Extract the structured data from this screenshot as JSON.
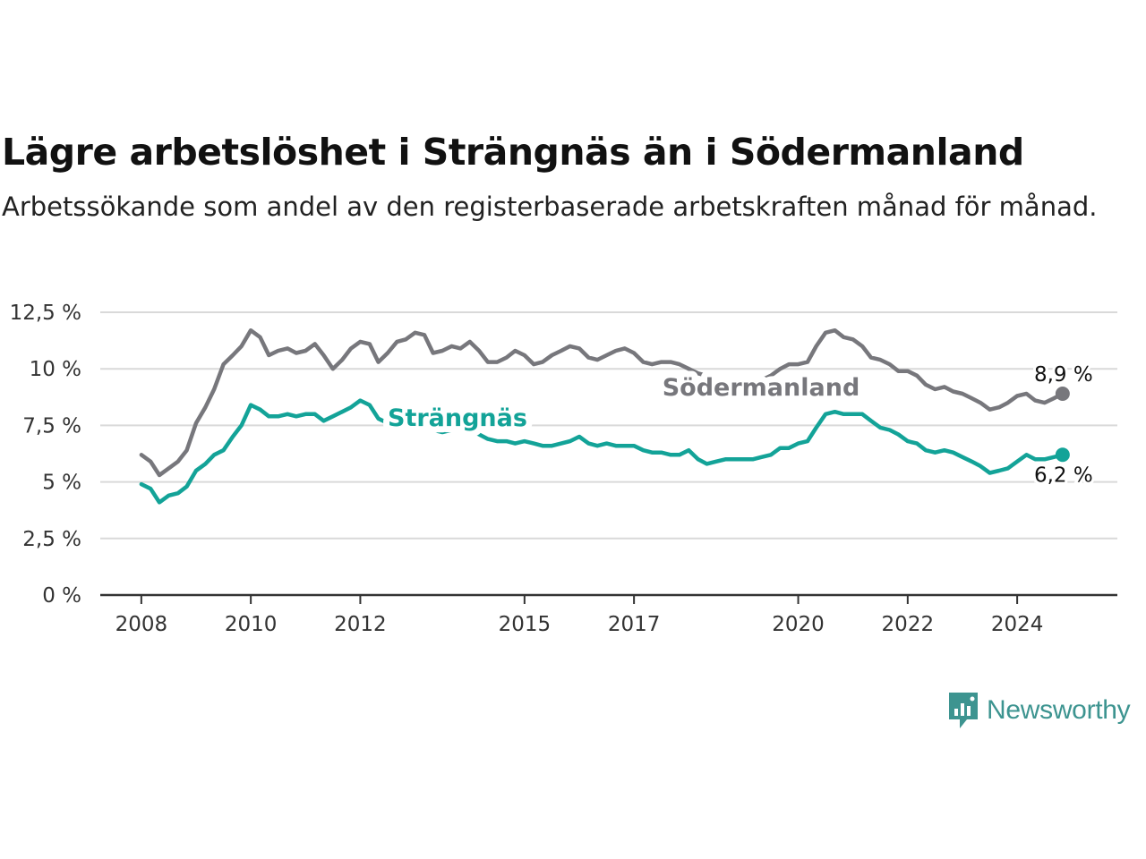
{
  "title": "Lägre arbetslöshet i Strängnäs än i Södermanland",
  "subtitle": "Arbetssökande som andel av den registerbaserade arbetskraften månad för månad.",
  "brand": {
    "name": "Newsworthy",
    "icon": "newsworthy-logo-icon",
    "color": "#3d9490"
  },
  "chart_data": {
    "type": "line",
    "title": "Lägre arbetslöshet i Strängnäs än i Södermanland",
    "subtitle": "Arbetssökande som andel av den registerbaserade arbetskraften månad för månad.",
    "xlabel": "",
    "ylabel": "",
    "xlim": [
      2007.25,
      2025.83
    ],
    "ylim": [
      0,
      12.5
    ],
    "x_ticks": [
      2008,
      2010,
      2012,
      2015,
      2017,
      2020,
      2022,
      2024
    ],
    "y_ticks": [
      0,
      2.5,
      5,
      7.5,
      10,
      12.5
    ],
    "y_tick_labels": [
      "0 %",
      "2,5 %",
      "5 %",
      "7,5 %",
      "10 %",
      "12,5 %"
    ],
    "grid": "horizontal",
    "legend": "inline labels",
    "series": [
      {
        "name": "Södermanland",
        "color": "#77777c",
        "end_label": "8,9 %",
        "points": [
          [
            2008.0,
            6.2
          ],
          [
            2008.17,
            5.9
          ],
          [
            2008.33,
            5.3
          ],
          [
            2008.5,
            5.6
          ],
          [
            2008.67,
            5.9
          ],
          [
            2008.83,
            6.4
          ],
          [
            2009.0,
            7.6
          ],
          [
            2009.17,
            8.3
          ],
          [
            2009.33,
            9.1
          ],
          [
            2009.5,
            10.2
          ],
          [
            2009.67,
            10.6
          ],
          [
            2009.83,
            11.0
          ],
          [
            2010.0,
            11.7
          ],
          [
            2010.17,
            11.4
          ],
          [
            2010.33,
            10.6
          ],
          [
            2010.5,
            10.8
          ],
          [
            2010.67,
            10.9
          ],
          [
            2010.83,
            10.7
          ],
          [
            2011.0,
            10.8
          ],
          [
            2011.17,
            11.1
          ],
          [
            2011.33,
            10.6
          ],
          [
            2011.5,
            10.0
          ],
          [
            2011.67,
            10.4
          ],
          [
            2011.83,
            10.9
          ],
          [
            2012.0,
            11.2
          ],
          [
            2012.17,
            11.1
          ],
          [
            2012.33,
            10.3
          ],
          [
            2012.5,
            10.7
          ],
          [
            2012.67,
            11.2
          ],
          [
            2012.83,
            11.3
          ],
          [
            2013.0,
            11.6
          ],
          [
            2013.17,
            11.5
          ],
          [
            2013.33,
            10.7
          ],
          [
            2013.5,
            10.8
          ],
          [
            2013.67,
            11.0
          ],
          [
            2013.83,
            10.9
          ],
          [
            2014.0,
            11.2
          ],
          [
            2014.17,
            10.8
          ],
          [
            2014.33,
            10.3
          ],
          [
            2014.5,
            10.3
          ],
          [
            2014.67,
            10.5
          ],
          [
            2014.83,
            10.8
          ],
          [
            2015.0,
            10.6
          ],
          [
            2015.17,
            10.2
          ],
          [
            2015.33,
            10.3
          ],
          [
            2015.5,
            10.6
          ],
          [
            2015.67,
            10.8
          ],
          [
            2015.83,
            11.0
          ],
          [
            2016.0,
            10.9
          ],
          [
            2016.17,
            10.5
          ],
          [
            2016.33,
            10.4
          ],
          [
            2016.5,
            10.6
          ],
          [
            2016.67,
            10.8
          ],
          [
            2016.83,
            10.9
          ],
          [
            2017.0,
            10.7
          ],
          [
            2017.17,
            10.3
          ],
          [
            2017.33,
            10.2
          ],
          [
            2017.5,
            10.3
          ],
          [
            2017.67,
            10.3
          ],
          [
            2017.83,
            10.2
          ],
          [
            2018.0,
            10.0
          ],
          [
            2018.17,
            9.8
          ],
          [
            2018.33,
            9.7
          ],
          [
            2018.5,
            9.5
          ],
          [
            2018.67,
            9.4
          ],
          [
            2018.83,
            9.3
          ],
          [
            2019.0,
            9.3
          ],
          [
            2019.17,
            9.4
          ],
          [
            2019.33,
            9.5
          ],
          [
            2019.5,
            9.7
          ],
          [
            2019.67,
            10.0
          ],
          [
            2019.83,
            10.2
          ],
          [
            2020.0,
            10.2
          ],
          [
            2020.17,
            10.3
          ],
          [
            2020.33,
            11.0
          ],
          [
            2020.5,
            11.6
          ],
          [
            2020.67,
            11.7
          ],
          [
            2020.83,
            11.4
          ],
          [
            2021.0,
            11.3
          ],
          [
            2021.17,
            11.0
          ],
          [
            2021.33,
            10.5
          ],
          [
            2021.5,
            10.4
          ],
          [
            2021.67,
            10.2
          ],
          [
            2021.83,
            9.9
          ],
          [
            2022.0,
            9.9
          ],
          [
            2022.17,
            9.7
          ],
          [
            2022.33,
            9.3
          ],
          [
            2022.5,
            9.1
          ],
          [
            2022.67,
            9.2
          ],
          [
            2022.83,
            9.0
          ],
          [
            2023.0,
            8.9
          ],
          [
            2023.17,
            8.7
          ],
          [
            2023.33,
            8.5
          ],
          [
            2023.5,
            8.2
          ],
          [
            2023.67,
            8.3
          ],
          [
            2023.83,
            8.5
          ],
          [
            2024.0,
            8.8
          ],
          [
            2024.17,
            8.9
          ],
          [
            2024.33,
            8.6
          ],
          [
            2024.5,
            8.5
          ],
          [
            2024.67,
            8.7
          ],
          [
            2024.83,
            8.9
          ]
        ]
      },
      {
        "name": "Strängnäs",
        "color": "#13a398",
        "end_label": "6,2 %",
        "points": [
          [
            2008.0,
            4.9
          ],
          [
            2008.17,
            4.7
          ],
          [
            2008.33,
            4.1
          ],
          [
            2008.5,
            4.4
          ],
          [
            2008.67,
            4.5
          ],
          [
            2008.83,
            4.8
          ],
          [
            2009.0,
            5.5
          ],
          [
            2009.17,
            5.8
          ],
          [
            2009.33,
            6.2
          ],
          [
            2009.5,
            6.4
          ],
          [
            2009.67,
            7.0
          ],
          [
            2009.83,
            7.5
          ],
          [
            2010.0,
            8.4
          ],
          [
            2010.17,
            8.2
          ],
          [
            2010.33,
            7.9
          ],
          [
            2010.5,
            7.9
          ],
          [
            2010.67,
            8.0
          ],
          [
            2010.83,
            7.9
          ],
          [
            2011.0,
            8.0
          ],
          [
            2011.17,
            8.0
          ],
          [
            2011.33,
            7.7
          ],
          [
            2011.5,
            7.9
          ],
          [
            2011.67,
            8.1
          ],
          [
            2011.83,
            8.3
          ],
          [
            2012.0,
            8.6
          ],
          [
            2012.17,
            8.4
          ],
          [
            2012.33,
            7.8
          ],
          [
            2012.5,
            7.6
          ],
          [
            2012.67,
            7.7
          ],
          [
            2012.83,
            7.8
          ],
          [
            2013.0,
            7.9
          ],
          [
            2013.17,
            7.6
          ],
          [
            2013.33,
            7.3
          ],
          [
            2013.5,
            7.2
          ],
          [
            2013.67,
            7.3
          ],
          [
            2013.83,
            7.4
          ],
          [
            2014.0,
            7.3
          ],
          [
            2014.17,
            7.1
          ],
          [
            2014.33,
            6.9
          ],
          [
            2014.5,
            6.8
          ],
          [
            2014.67,
            6.8
          ],
          [
            2014.83,
            6.7
          ],
          [
            2015.0,
            6.8
          ],
          [
            2015.17,
            6.7
          ],
          [
            2015.33,
            6.6
          ],
          [
            2015.5,
            6.6
          ],
          [
            2015.67,
            6.7
          ],
          [
            2015.83,
            6.8
          ],
          [
            2016.0,
            7.0
          ],
          [
            2016.17,
            6.7
          ],
          [
            2016.33,
            6.6
          ],
          [
            2016.5,
            6.7
          ],
          [
            2016.67,
            6.6
          ],
          [
            2016.83,
            6.6
          ],
          [
            2017.0,
            6.6
          ],
          [
            2017.17,
            6.4
          ],
          [
            2017.33,
            6.3
          ],
          [
            2017.5,
            6.3
          ],
          [
            2017.67,
            6.2
          ],
          [
            2017.83,
            6.2
          ],
          [
            2018.0,
            6.4
          ],
          [
            2018.17,
            6.0
          ],
          [
            2018.33,
            5.8
          ],
          [
            2018.5,
            5.9
          ],
          [
            2018.67,
            6.0
          ],
          [
            2018.83,
            6.0
          ],
          [
            2019.0,
            6.0
          ],
          [
            2019.17,
            6.0
          ],
          [
            2019.33,
            6.1
          ],
          [
            2019.5,
            6.2
          ],
          [
            2019.67,
            6.5
          ],
          [
            2019.83,
            6.5
          ],
          [
            2020.0,
            6.7
          ],
          [
            2020.17,
            6.8
          ],
          [
            2020.33,
            7.4
          ],
          [
            2020.5,
            8.0
          ],
          [
            2020.67,
            8.1
          ],
          [
            2020.83,
            8.0
          ],
          [
            2021.0,
            8.0
          ],
          [
            2021.17,
            8.0
          ],
          [
            2021.33,
            7.7
          ],
          [
            2021.5,
            7.4
          ],
          [
            2021.67,
            7.3
          ],
          [
            2021.83,
            7.1
          ],
          [
            2022.0,
            6.8
          ],
          [
            2022.17,
            6.7
          ],
          [
            2022.33,
            6.4
          ],
          [
            2022.5,
            6.3
          ],
          [
            2022.67,
            6.4
          ],
          [
            2022.83,
            6.3
          ],
          [
            2023.0,
            6.1
          ],
          [
            2023.17,
            5.9
          ],
          [
            2023.33,
            5.7
          ],
          [
            2023.5,
            5.4
          ],
          [
            2023.67,
            5.5
          ],
          [
            2023.83,
            5.6
          ],
          [
            2024.0,
            5.9
          ],
          [
            2024.17,
            6.2
          ],
          [
            2024.33,
            6.0
          ],
          [
            2024.5,
            6.0
          ],
          [
            2024.67,
            6.1
          ],
          [
            2024.83,
            6.2
          ]
        ]
      }
    ]
  }
}
